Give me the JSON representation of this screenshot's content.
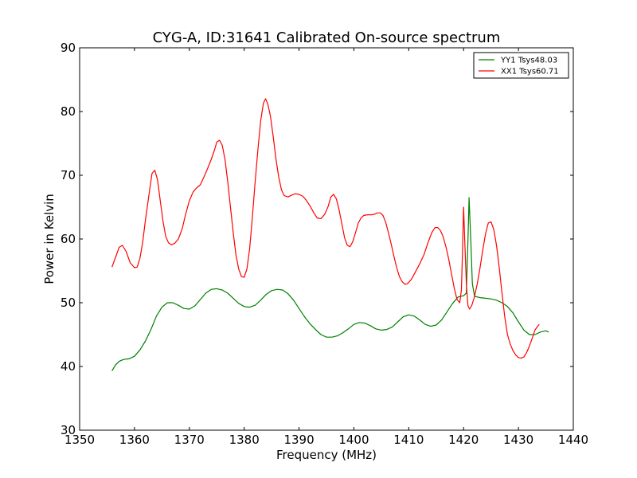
{
  "chart_data": {
    "type": "line",
    "title": "CYG-A, ID:31641 Calibrated On-source spectrum",
    "xlabel": "Frequency (MHz)",
    "ylabel": "Power in Kelvin",
    "xlim": [
      1350,
      1440
    ],
    "ylim": [
      30,
      90
    ],
    "xticks": [
      1350,
      1360,
      1370,
      1380,
      1390,
      1400,
      1410,
      1420,
      1430,
      1440
    ],
    "yticks": [
      30,
      40,
      50,
      60,
      70,
      80,
      90
    ],
    "grid": false,
    "legend_position": "top-right",
    "series": [
      {
        "name": "YY1 Tsys48.03",
        "color": "#008000",
        "points": [
          [
            1355.9,
            39.3
          ],
          [
            1356.5,
            40.2
          ],
          [
            1357.2,
            40.8
          ],
          [
            1358,
            41.1
          ],
          [
            1359,
            41.2
          ],
          [
            1360,
            41.6
          ],
          [
            1361,
            42.6
          ],
          [
            1362,
            44.0
          ],
          [
            1363,
            45.8
          ],
          [
            1364,
            47.9
          ],
          [
            1365,
            49.3
          ],
          [
            1366,
            50.0
          ],
          [
            1367,
            50.0
          ],
          [
            1368,
            49.6
          ],
          [
            1369,
            49.1
          ],
          [
            1370,
            49.0
          ],
          [
            1371,
            49.5
          ],
          [
            1372,
            50.5
          ],
          [
            1373,
            51.5
          ],
          [
            1374,
            52.1
          ],
          [
            1375,
            52.2
          ],
          [
            1376,
            52.0
          ],
          [
            1377,
            51.5
          ],
          [
            1378,
            50.7
          ],
          [
            1379,
            49.9
          ],
          [
            1380,
            49.4
          ],
          [
            1381,
            49.3
          ],
          [
            1382,
            49.6
          ],
          [
            1383,
            50.4
          ],
          [
            1384,
            51.3
          ],
          [
            1385,
            51.9
          ],
          [
            1386,
            52.1
          ],
          [
            1387,
            52.0
          ],
          [
            1388,
            51.4
          ],
          [
            1389,
            50.4
          ],
          [
            1390,
            49.1
          ],
          [
            1391,
            47.8
          ],
          [
            1392,
            46.7
          ],
          [
            1393,
            45.8
          ],
          [
            1394,
            45.0
          ],
          [
            1395,
            44.6
          ],
          [
            1396,
            44.6
          ],
          [
            1397,
            44.8
          ],
          [
            1398,
            45.3
          ],
          [
            1399,
            45.9
          ],
          [
            1400,
            46.6
          ],
          [
            1401,
            46.9
          ],
          [
            1402,
            46.8
          ],
          [
            1403,
            46.4
          ],
          [
            1404,
            45.9
          ],
          [
            1405,
            45.7
          ],
          [
            1406,
            45.8
          ],
          [
            1407,
            46.2
          ],
          [
            1408,
            47.0
          ],
          [
            1409,
            47.8
          ],
          [
            1410,
            48.1
          ],
          [
            1411,
            47.9
          ],
          [
            1412,
            47.3
          ],
          [
            1413,
            46.6
          ],
          [
            1414,
            46.3
          ],
          [
            1415,
            46.5
          ],
          [
            1416,
            47.3
          ],
          [
            1417,
            48.6
          ],
          [
            1418,
            49.9
          ],
          [
            1419,
            50.9
          ],
          [
            1420,
            51.1
          ],
          [
            1420.5,
            51.5
          ],
          [
            1420.8,
            60.0
          ],
          [
            1421.0,
            66.5
          ],
          [
            1421.3,
            60.0
          ],
          [
            1421.6,
            53.0
          ],
          [
            1422,
            51.0
          ],
          [
            1423,
            50.8
          ],
          [
            1424,
            50.7
          ],
          [
            1425,
            50.6
          ],
          [
            1426,
            50.4
          ],
          [
            1427,
            50.0
          ],
          [
            1428,
            49.4
          ],
          [
            1429,
            48.4
          ],
          [
            1430,
            47.0
          ],
          [
            1431,
            45.7
          ],
          [
            1432,
            45.0
          ],
          [
            1433,
            45.0
          ],
          [
            1434,
            45.4
          ],
          [
            1435,
            45.6
          ],
          [
            1435.5,
            45.4
          ]
        ]
      },
      {
        "name": "XX1 Tsys60.71",
        "color": "#ff0000",
        "points": [
          [
            1355.9,
            55.6
          ],
          [
            1356.5,
            57.0
          ],
          [
            1357.2,
            58.7
          ],
          [
            1357.8,
            59.0
          ],
          [
            1358.5,
            58.0
          ],
          [
            1359.2,
            56.3
          ],
          [
            1360,
            55.5
          ],
          [
            1360.5,
            55.6
          ],
          [
            1361,
            57.0
          ],
          [
            1361.5,
            59.5
          ],
          [
            1362,
            63.0
          ],
          [
            1362.7,
            67.3
          ],
          [
            1363.2,
            70.3
          ],
          [
            1363.7,
            70.8
          ],
          [
            1364.2,
            69.3
          ],
          [
            1364.7,
            66.0
          ],
          [
            1365.2,
            62.8
          ],
          [
            1365.7,
            60.4
          ],
          [
            1366.2,
            59.4
          ],
          [
            1366.7,
            59.1
          ],
          [
            1367.3,
            59.3
          ],
          [
            1368,
            60.0
          ],
          [
            1368.7,
            61.6
          ],
          [
            1369.3,
            63.8
          ],
          [
            1370,
            66.0
          ],
          [
            1370.7,
            67.4
          ],
          [
            1371.3,
            68.0
          ],
          [
            1372,
            68.5
          ],
          [
            1372.7,
            69.8
          ],
          [
            1373.3,
            71.0
          ],
          [
            1374,
            72.5
          ],
          [
            1374.6,
            74.0
          ],
          [
            1375,
            75.2
          ],
          [
            1375.5,
            75.5
          ],
          [
            1376,
            74.7
          ],
          [
            1376.5,
            72.5
          ],
          [
            1377,
            69.0
          ],
          [
            1377.5,
            65.0
          ],
          [
            1378,
            61.0
          ],
          [
            1378.5,
            57.5
          ],
          [
            1379,
            55.3
          ],
          [
            1379.5,
            54.1
          ],
          [
            1380,
            54.0
          ],
          [
            1380.5,
            55.3
          ],
          [
            1381,
            58.5
          ],
          [
            1381.5,
            63.5
          ],
          [
            1382,
            69.0
          ],
          [
            1382.5,
            74.0
          ],
          [
            1383,
            78.5
          ],
          [
            1383.5,
            81.3
          ],
          [
            1383.9,
            82.0
          ],
          [
            1384.3,
            81.2
          ],
          [
            1384.8,
            79.2
          ],
          [
            1385.3,
            76.0
          ],
          [
            1385.8,
            72.5
          ],
          [
            1386.3,
            69.7
          ],
          [
            1386.8,
            67.7
          ],
          [
            1387.3,
            66.8
          ],
          [
            1388,
            66.6
          ],
          [
            1388.7,
            66.9
          ],
          [
            1389.3,
            67.1
          ],
          [
            1390,
            67.0
          ],
          [
            1390.7,
            66.7
          ],
          [
            1391.3,
            66.1
          ],
          [
            1392,
            65.2
          ],
          [
            1392.7,
            64.1
          ],
          [
            1393.3,
            63.3
          ],
          [
            1394,
            63.2
          ],
          [
            1394.7,
            63.9
          ],
          [
            1395.3,
            65.1
          ],
          [
            1395.8,
            66.6
          ],
          [
            1396.3,
            67.0
          ],
          [
            1396.8,
            66.3
          ],
          [
            1397.3,
            64.6
          ],
          [
            1397.8,
            62.4
          ],
          [
            1398.3,
            60.2
          ],
          [
            1398.8,
            59.0
          ],
          [
            1399.3,
            58.8
          ],
          [
            1399.8,
            59.6
          ],
          [
            1400.3,
            61.0
          ],
          [
            1400.8,
            62.5
          ],
          [
            1401.3,
            63.3
          ],
          [
            1401.8,
            63.7
          ],
          [
            1402.5,
            63.8
          ],
          [
            1403.2,
            63.8
          ],
          [
            1403.8,
            63.9
          ],
          [
            1404.3,
            64.1
          ],
          [
            1404.8,
            64.1
          ],
          [
            1405.3,
            63.7
          ],
          [
            1405.8,
            62.6
          ],
          [
            1406.3,
            61.0
          ],
          [
            1406.8,
            59.2
          ],
          [
            1407.3,
            57.3
          ],
          [
            1407.8,
            55.5
          ],
          [
            1408.3,
            54.1
          ],
          [
            1408.8,
            53.3
          ],
          [
            1409.3,
            52.9
          ],
          [
            1409.8,
            53.0
          ],
          [
            1410.5,
            53.7
          ],
          [
            1411.2,
            54.8
          ],
          [
            1412,
            56.1
          ],
          [
            1412.8,
            57.6
          ],
          [
            1413.5,
            59.4
          ],
          [
            1414.2,
            61.0
          ],
          [
            1414.8,
            61.8
          ],
          [
            1415.3,
            61.8
          ],
          [
            1415.8,
            61.3
          ],
          [
            1416.3,
            60.3
          ],
          [
            1416.8,
            58.7
          ],
          [
            1417.3,
            56.8
          ],
          [
            1417.8,
            54.5
          ],
          [
            1418.3,
            52.3
          ],
          [
            1418.8,
            50.5
          ],
          [
            1419.3,
            50.0
          ],
          [
            1419.6,
            52.0
          ],
          [
            1419.8,
            58.0
          ],
          [
            1420.0,
            65.0
          ],
          [
            1420.2,
            60.0
          ],
          [
            1420.5,
            53.0
          ],
          [
            1420.8,
            49.5
          ],
          [
            1421.1,
            49.0
          ],
          [
            1421.5,
            49.6
          ],
          [
            1422,
            51.0
          ],
          [
            1422.5,
            53.0
          ],
          [
            1423,
            55.5
          ],
          [
            1423.5,
            58.3
          ],
          [
            1424,
            60.8
          ],
          [
            1424.5,
            62.5
          ],
          [
            1425,
            62.7
          ],
          [
            1425.5,
            61.5
          ],
          [
            1426,
            59.0
          ],
          [
            1426.5,
            55.5
          ],
          [
            1427,
            51.5
          ],
          [
            1427.5,
            47.8
          ],
          [
            1428,
            45.0
          ],
          [
            1428.5,
            43.5
          ],
          [
            1429,
            42.5
          ],
          [
            1429.5,
            41.8
          ],
          [
            1430,
            41.4
          ],
          [
            1430.5,
            41.3
          ],
          [
            1431,
            41.5
          ],
          [
            1431.5,
            42.2
          ],
          [
            1432,
            43.2
          ],
          [
            1432.5,
            44.4
          ],
          [
            1433,
            45.7
          ],
          [
            1433.5,
            46.3
          ],
          [
            1433.8,
            46.6
          ]
        ]
      }
    ]
  }
}
